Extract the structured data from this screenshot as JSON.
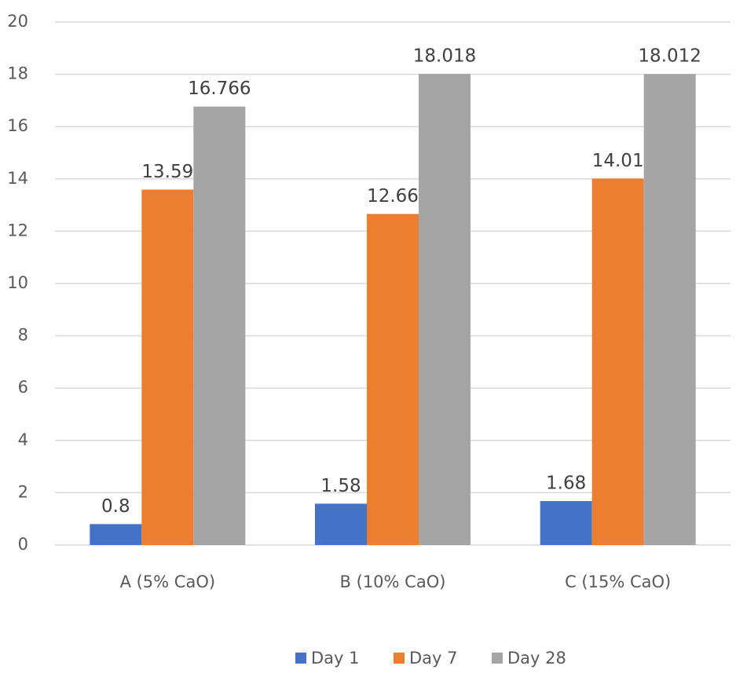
{
  "chart_data": {
    "type": "bar",
    "categories": [
      "A (5% CaO)",
      "B (10% CaO)",
      "C (15% CaO)"
    ],
    "series": [
      {
        "name": "Day 1",
        "color": "#4472c4",
        "values": [
          0.8,
          1.58,
          1.68
        ]
      },
      {
        "name": "Day 7",
        "color": "#ed7d31",
        "values": [
          13.59,
          12.66,
          14.01
        ]
      },
      {
        "name": "Day 28",
        "color": "#a5a5a5",
        "values": [
          16.766,
          18.018,
          18.012
        ]
      }
    ],
    "ylim": [
      0,
      20
    ],
    "yticks": [
      0,
      2,
      4,
      6,
      8,
      10,
      12,
      14,
      16,
      18,
      20
    ],
    "grid": true,
    "legend": "bottom",
    "data_labels": true
  }
}
